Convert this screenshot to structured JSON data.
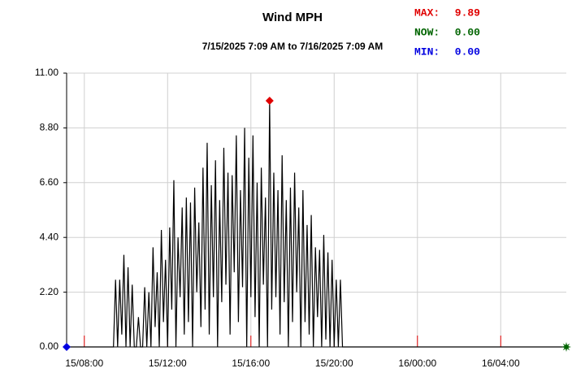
{
  "chart_data": {
    "type": "line",
    "title": "Wind MPH",
    "subtitle": "7/15/2025 7:09 AM to 7/16/2025 7:09 AM",
    "x": [
      "15/07:09",
      "15/09:24",
      "15/09:30",
      "15/09:36",
      "15/09:42",
      "15/09:48",
      "15/09:54",
      "15/10:00",
      "15/10:06",
      "15/10:12",
      "15/10:18",
      "15/10:24",
      "15/10:30",
      "15/10:36",
      "15/10:42",
      "15/10:48",
      "15/10:54",
      "15/11:00",
      "15/11:06",
      "15/11:12",
      "15/11:18",
      "15/11:24",
      "15/11:30",
      "15/11:36",
      "15/11:42",
      "15/11:48",
      "15/11:54",
      "15/12:00",
      "15/12:06",
      "15/12:12",
      "15/12:18",
      "15/12:24",
      "15/12:30",
      "15/12:36",
      "15/12:42",
      "15/12:48",
      "15/12:54",
      "15/13:00",
      "15/13:06",
      "15/13:12",
      "15/13:18",
      "15/13:24",
      "15/13:30",
      "15/13:36",
      "15/13:42",
      "15/13:48",
      "15/13:54",
      "15/14:00",
      "15/14:06",
      "15/14:12",
      "15/14:18",
      "15/14:24",
      "15/14:30",
      "15/14:36",
      "15/14:42",
      "15/14:48",
      "15/14:54",
      "15/15:00",
      "15/15:06",
      "15/15:12",
      "15/15:18",
      "15/15:24",
      "15/15:30",
      "15/15:36",
      "15/15:42",
      "15/15:48",
      "15/15:54",
      "15/16:00",
      "15/16:06",
      "15/16:12",
      "15/16:18",
      "15/16:24",
      "15/16:30",
      "15/16:36",
      "15/16:42",
      "15/16:48",
      "15/16:54",
      "15/17:00",
      "15/17:06",
      "15/17:12",
      "15/17:18",
      "15/17:24",
      "15/17:30",
      "15/17:36",
      "15/17:42",
      "15/17:48",
      "15/17:54",
      "15/18:00",
      "15/18:06",
      "15/18:12",
      "15/18:18",
      "15/18:24",
      "15/18:30",
      "15/18:36",
      "15/18:42",
      "15/18:48",
      "15/18:54",
      "15/19:00",
      "15/19:06",
      "15/19:12",
      "15/19:18",
      "15/19:24",
      "15/19:30",
      "15/19:36",
      "15/19:42",
      "15/19:48",
      "15/19:54",
      "15/20:00",
      "15/20:06",
      "15/20:12",
      "15/20:18",
      "15/20:24",
      "16/07:09"
    ],
    "series": [
      {
        "name": "Wind MPH",
        "color": "#000000",
        "values": [
          0,
          0,
          2.7,
          0,
          2.7,
          0.5,
          3.7,
          0,
          3.2,
          0,
          2.5,
          0,
          0,
          1.2,
          0,
          0,
          2.4,
          0,
          2.2,
          0,
          4.0,
          0.8,
          3.0,
          0,
          4.7,
          1.0,
          3.5,
          0,
          4.8,
          1.5,
          6.7,
          0,
          4.4,
          2.0,
          5.6,
          0.5,
          6.0,
          1.0,
          5.8,
          0,
          6.4,
          2.2,
          5.0,
          0.8,
          7.2,
          1.5,
          8.2,
          0.5,
          6.5,
          2.0,
          7.5,
          0,
          5.9,
          1.8,
          8.0,
          2.5,
          7.0,
          0.5,
          6.9,
          3.0,
          8.5,
          1.0,
          6.3,
          2.4,
          8.8,
          0,
          7.6,
          2.0,
          8.5,
          1.2,
          6.6,
          0,
          7.2,
          2.5,
          6.0,
          0,
          9.89,
          1.5,
          7.0,
          2.0,
          6.3,
          0.5,
          7.7,
          1.8,
          5.9,
          0,
          6.4,
          1.0,
          7.0,
          2.2,
          5.6,
          0,
          6.3,
          1.0,
          4.9,
          0.5,
          5.3,
          0,
          4.0,
          1.2,
          3.9,
          0,
          4.5,
          0.3,
          3.8,
          0,
          3.5,
          0,
          2.7,
          0,
          2.7,
          0,
          0
        ]
      }
    ],
    "xlim": [
      "15/07:09",
      "16/07:09"
    ],
    "xticks": [
      "15/08:00",
      "15/12:00",
      "15/16:00",
      "15/20:00",
      "16/00:00",
      "16/04:00"
    ],
    "ylim": [
      0,
      11
    ],
    "yticks": [
      {
        "value": 0,
        "label": "0.00"
      },
      {
        "value": 2.2,
        "label": "2.20"
      },
      {
        "value": 4.4,
        "label": "4.40"
      },
      {
        "value": 6.6,
        "label": "6.60"
      },
      {
        "value": 8.8,
        "label": "8.80"
      },
      {
        "value": 11,
        "label": "11.00"
      }
    ],
    "grid": true,
    "annotations": [
      {
        "label": "MAX:",
        "value": 9.89,
        "value_label": "9.89",
        "x": "15/16:54",
        "color": "#e00000",
        "marker": "diamond"
      },
      {
        "label": "NOW:",
        "value": 0,
        "value_label": "0.00",
        "x": "16/07:09",
        "color": "#006400",
        "marker": "star"
      },
      {
        "label": "MIN:",
        "value": 0,
        "value_label": "0.00",
        "x": "15/07:09",
        "color": "#0000e0",
        "marker": "diamond"
      }
    ]
  }
}
